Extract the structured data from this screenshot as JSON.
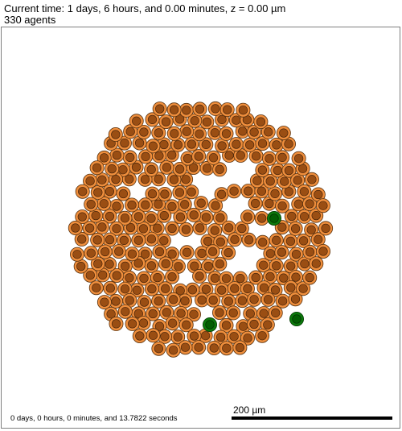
{
  "header": {
    "time_line": "Current time: 1 days, 6 hours, and 0.00 minutes, z = 0.00 µm",
    "agents_line": "330 agents"
  },
  "footer": {
    "elapsed_text": "0 days, 0 hours, 0 minutes, and 13.7822 seconds",
    "scale_label": "200 µm"
  },
  "colors": {
    "cell_outer": "#ef8e3c",
    "cell_outer_stroke": "#5a3310",
    "cell_nucleus": "#9a4e13",
    "cell_nucleus_stroke": "#3f200a",
    "highlight_outer": "#0c7a0c",
    "highlight_nucleus": "#035e03",
    "frame": "#7f7f7f",
    "scale_bar": "#000000"
  },
  "agents": {
    "count": 330,
    "cell_type": "orange-cell-icon",
    "highlighted_cell_type": "green-cell-icon",
    "highlighted_count": 3
  }
}
